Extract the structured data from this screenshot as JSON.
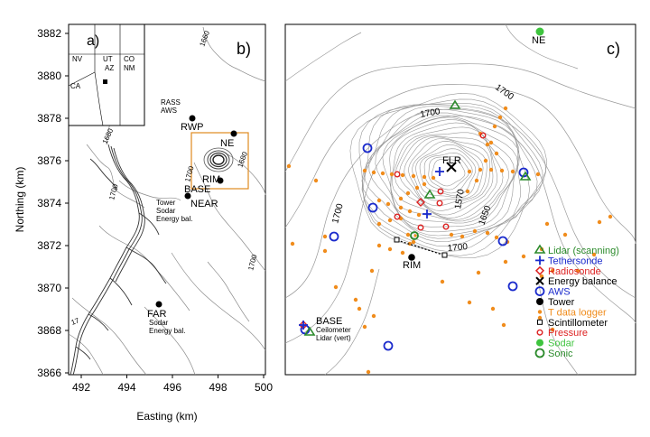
{
  "colors": {
    "contour": "#8a8a8a",
    "river": "#333333",
    "box": "#e08a1e",
    "lidar": "#2a8a2a",
    "tethersonde": "#1a2acc",
    "radiosonde": "#dd2222",
    "energy": "#000000",
    "aws": "#1a2acc",
    "tower": "#000000",
    "tdata": "#f08c1c",
    "scint": "#000000",
    "pressure": "#dd2222",
    "sodar": "#3ec43e",
    "sonic": "#2a8a2a"
  },
  "left_map": {
    "ylabel": "Northing (km)",
    "xlabel": "Easting (km)",
    "yticks": [
      "3882",
      "3880",
      "3878",
      "3876",
      "3874",
      "3872",
      "3870",
      "3868",
      "3866"
    ],
    "xticks": [
      "492",
      "494",
      "496",
      "498",
      "500"
    ],
    "panel_a_label": "a)",
    "panel_b_label": "b)",
    "inset_states": [
      "NV",
      "UT",
      "CO",
      "AZ",
      "NM",
      "CA"
    ],
    "sites": [
      {
        "name": "RWP",
        "sub": [
          "RASS",
          "AWS"
        ]
      },
      {
        "name": "NE",
        "sub": []
      },
      {
        "name": "RIM",
        "sub": []
      },
      {
        "name": "BASE",
        "sub": []
      },
      {
        "name": "NEAR",
        "sub": [
          "Tower",
          "Sodar",
          "Energy bal."
        ]
      },
      {
        "name": "FAR",
        "sub": [
          "Sodar",
          "Energy bal."
        ]
      }
    ],
    "contour_labels": [
      "1660",
      "1680",
      "1700",
      "1680",
      "1700",
      "1700",
      "17"
    ]
  },
  "right_map": {
    "panel_label": "c)",
    "sites": {
      "ne": "NE",
      "flr": "FLR",
      "rim": "RIM",
      "base": "BASE",
      "base_sub": [
        "Ceilometer",
        "Lidar (vert)"
      ]
    },
    "contour_labels": [
      "1700",
      "1700",
      "1700",
      "1570",
      "1650",
      "1700"
    ],
    "legend": [
      {
        "label": "Lidar (scanning)",
        "icon": "triangle-icon",
        "color": "#2a8a2a"
      },
      {
        "label": "Tethersonde",
        "icon": "plus-icon",
        "color": "#1a2acc"
      },
      {
        "label": "Radiosonde",
        "icon": "diamond-icon",
        "color": "#dd2222"
      },
      {
        "label": "Energy balance",
        "icon": "x-icon",
        "color": "#000000"
      },
      {
        "label": "AWS",
        "icon": "circle-open-icon",
        "color": "#1a2acc"
      },
      {
        "label": "Tower",
        "icon": "circle-filled-icon",
        "color": "#000000"
      },
      {
        "label": "T data logger",
        "icon": "dot-icon",
        "color": "#f08c1c"
      },
      {
        "label": "Scintillometer",
        "icon": "square-open-icon",
        "color": "#000000"
      },
      {
        "label": "Pressure",
        "icon": "circle-small-icon",
        "color": "#dd2222"
      },
      {
        "label": "Sodar",
        "icon": "circle-filled-icon",
        "color": "#3ec43e"
      },
      {
        "label": "Sonic",
        "icon": "circle-open-icon",
        "color": "#2a8a2a"
      }
    ]
  }
}
